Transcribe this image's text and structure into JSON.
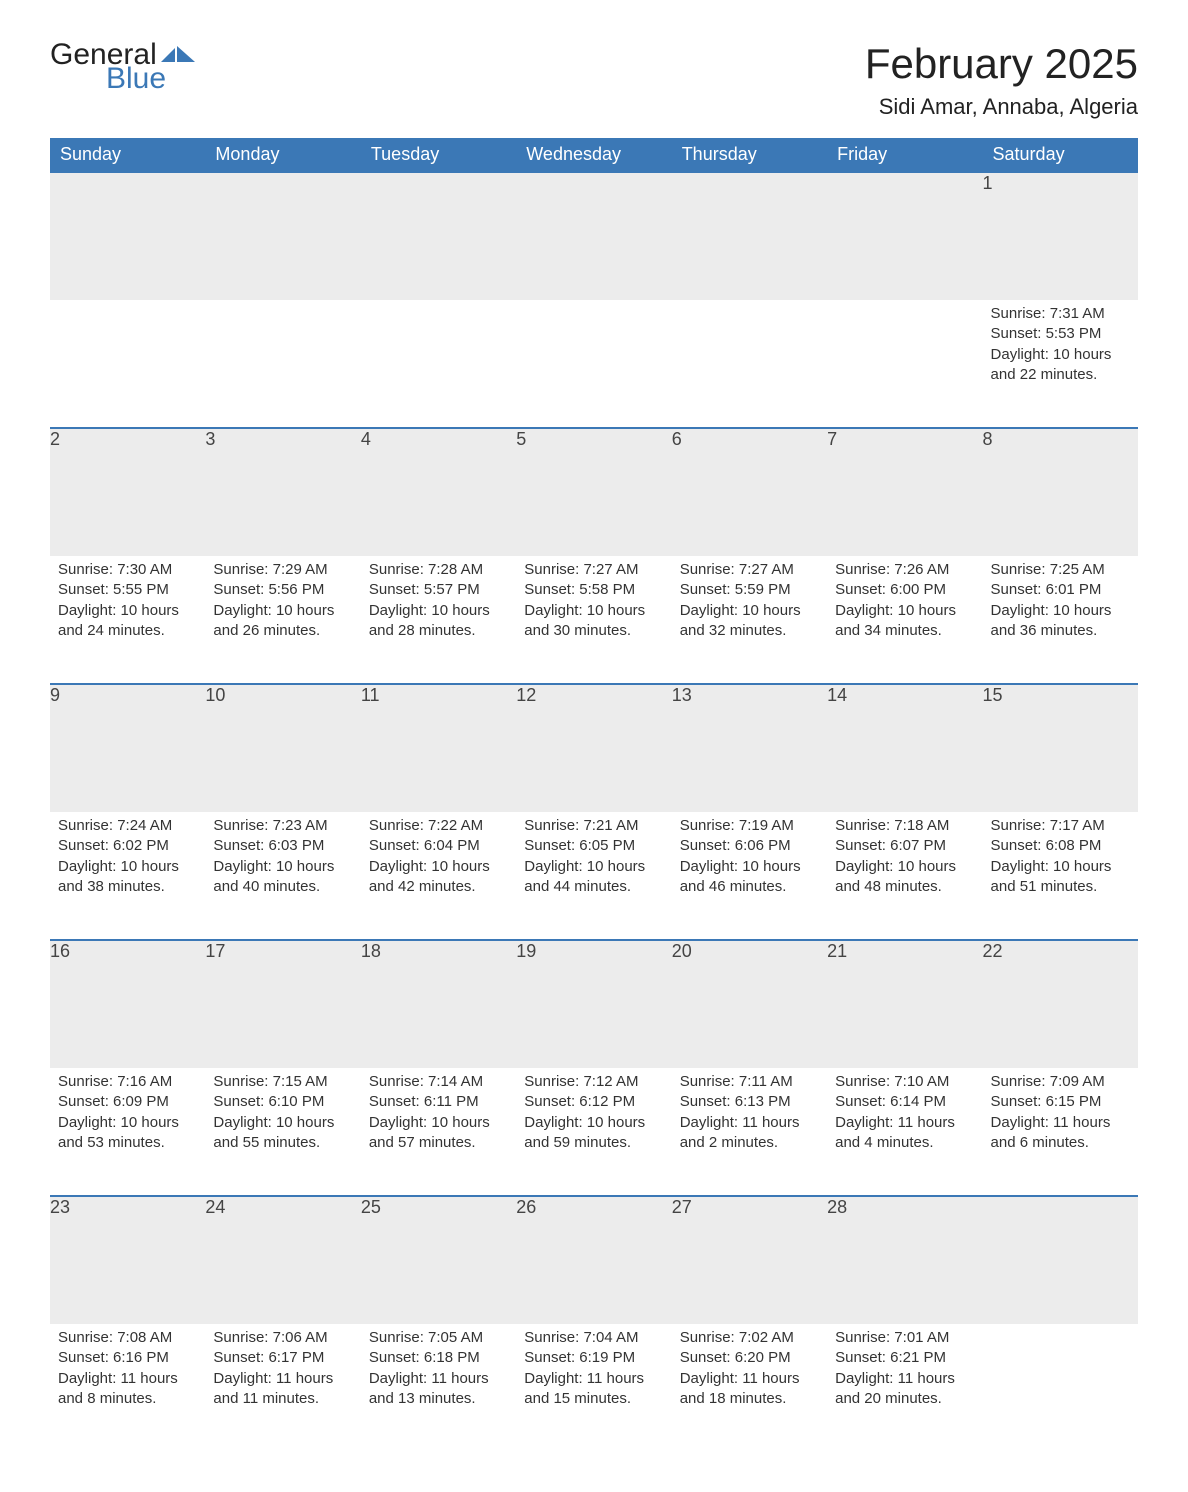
{
  "logo": {
    "text1": "General",
    "text2": "Blue",
    "icon_color": "#3b78b6"
  },
  "title": "February 2025",
  "location": "Sidi Amar, Annaba, Algeria",
  "colors": {
    "header_bg": "#3b78b6",
    "header_text": "#ffffff",
    "row_separator": "#3b78b6",
    "daynum_bg": "#ececec",
    "body_text": "#333333",
    "background": "#ffffff"
  },
  "typography": {
    "title_fontsize": 42,
    "location_fontsize": 22,
    "header_fontsize": 18,
    "daynum_fontsize": 18,
    "body_fontsize": 15
  },
  "columns": [
    "Sunday",
    "Monday",
    "Tuesday",
    "Wednesday",
    "Thursday",
    "Friday",
    "Saturday"
  ],
  "weeks": [
    [
      null,
      null,
      null,
      null,
      null,
      null,
      {
        "n": "1",
        "sunrise": "7:31 AM",
        "sunset": "5:53 PM",
        "daylight": "10 hours and 22 minutes."
      }
    ],
    [
      {
        "n": "2",
        "sunrise": "7:30 AM",
        "sunset": "5:55 PM",
        "daylight": "10 hours and 24 minutes."
      },
      {
        "n": "3",
        "sunrise": "7:29 AM",
        "sunset": "5:56 PM",
        "daylight": "10 hours and 26 minutes."
      },
      {
        "n": "4",
        "sunrise": "7:28 AM",
        "sunset": "5:57 PM",
        "daylight": "10 hours and 28 minutes."
      },
      {
        "n": "5",
        "sunrise": "7:27 AM",
        "sunset": "5:58 PM",
        "daylight": "10 hours and 30 minutes."
      },
      {
        "n": "6",
        "sunrise": "7:27 AM",
        "sunset": "5:59 PM",
        "daylight": "10 hours and 32 minutes."
      },
      {
        "n": "7",
        "sunrise": "7:26 AM",
        "sunset": "6:00 PM",
        "daylight": "10 hours and 34 minutes."
      },
      {
        "n": "8",
        "sunrise": "7:25 AM",
        "sunset": "6:01 PM",
        "daylight": "10 hours and 36 minutes."
      }
    ],
    [
      {
        "n": "9",
        "sunrise": "7:24 AM",
        "sunset": "6:02 PM",
        "daylight": "10 hours and 38 minutes."
      },
      {
        "n": "10",
        "sunrise": "7:23 AM",
        "sunset": "6:03 PM",
        "daylight": "10 hours and 40 minutes."
      },
      {
        "n": "11",
        "sunrise": "7:22 AM",
        "sunset": "6:04 PM",
        "daylight": "10 hours and 42 minutes."
      },
      {
        "n": "12",
        "sunrise": "7:21 AM",
        "sunset": "6:05 PM",
        "daylight": "10 hours and 44 minutes."
      },
      {
        "n": "13",
        "sunrise": "7:19 AM",
        "sunset": "6:06 PM",
        "daylight": "10 hours and 46 minutes."
      },
      {
        "n": "14",
        "sunrise": "7:18 AM",
        "sunset": "6:07 PM",
        "daylight": "10 hours and 48 minutes."
      },
      {
        "n": "15",
        "sunrise": "7:17 AM",
        "sunset": "6:08 PM",
        "daylight": "10 hours and 51 minutes."
      }
    ],
    [
      {
        "n": "16",
        "sunrise": "7:16 AM",
        "sunset": "6:09 PM",
        "daylight": "10 hours and 53 minutes."
      },
      {
        "n": "17",
        "sunrise": "7:15 AM",
        "sunset": "6:10 PM",
        "daylight": "10 hours and 55 minutes."
      },
      {
        "n": "18",
        "sunrise": "7:14 AM",
        "sunset": "6:11 PM",
        "daylight": "10 hours and 57 minutes."
      },
      {
        "n": "19",
        "sunrise": "7:12 AM",
        "sunset": "6:12 PM",
        "daylight": "10 hours and 59 minutes."
      },
      {
        "n": "20",
        "sunrise": "7:11 AM",
        "sunset": "6:13 PM",
        "daylight": "11 hours and 2 minutes."
      },
      {
        "n": "21",
        "sunrise": "7:10 AM",
        "sunset": "6:14 PM",
        "daylight": "11 hours and 4 minutes."
      },
      {
        "n": "22",
        "sunrise": "7:09 AM",
        "sunset": "6:15 PM",
        "daylight": "11 hours and 6 minutes."
      }
    ],
    [
      {
        "n": "23",
        "sunrise": "7:08 AM",
        "sunset": "6:16 PM",
        "daylight": "11 hours and 8 minutes."
      },
      {
        "n": "24",
        "sunrise": "7:06 AM",
        "sunset": "6:17 PM",
        "daylight": "11 hours and 11 minutes."
      },
      {
        "n": "25",
        "sunrise": "7:05 AM",
        "sunset": "6:18 PM",
        "daylight": "11 hours and 13 minutes."
      },
      {
        "n": "26",
        "sunrise": "7:04 AM",
        "sunset": "6:19 PM",
        "daylight": "11 hours and 15 minutes."
      },
      {
        "n": "27",
        "sunrise": "7:02 AM",
        "sunset": "6:20 PM",
        "daylight": "11 hours and 18 minutes."
      },
      {
        "n": "28",
        "sunrise": "7:01 AM",
        "sunset": "6:21 PM",
        "daylight": "11 hours and 20 minutes."
      },
      null
    ]
  ],
  "labels": {
    "sunrise": "Sunrise: ",
    "sunset": "Sunset: ",
    "daylight": "Daylight: "
  }
}
